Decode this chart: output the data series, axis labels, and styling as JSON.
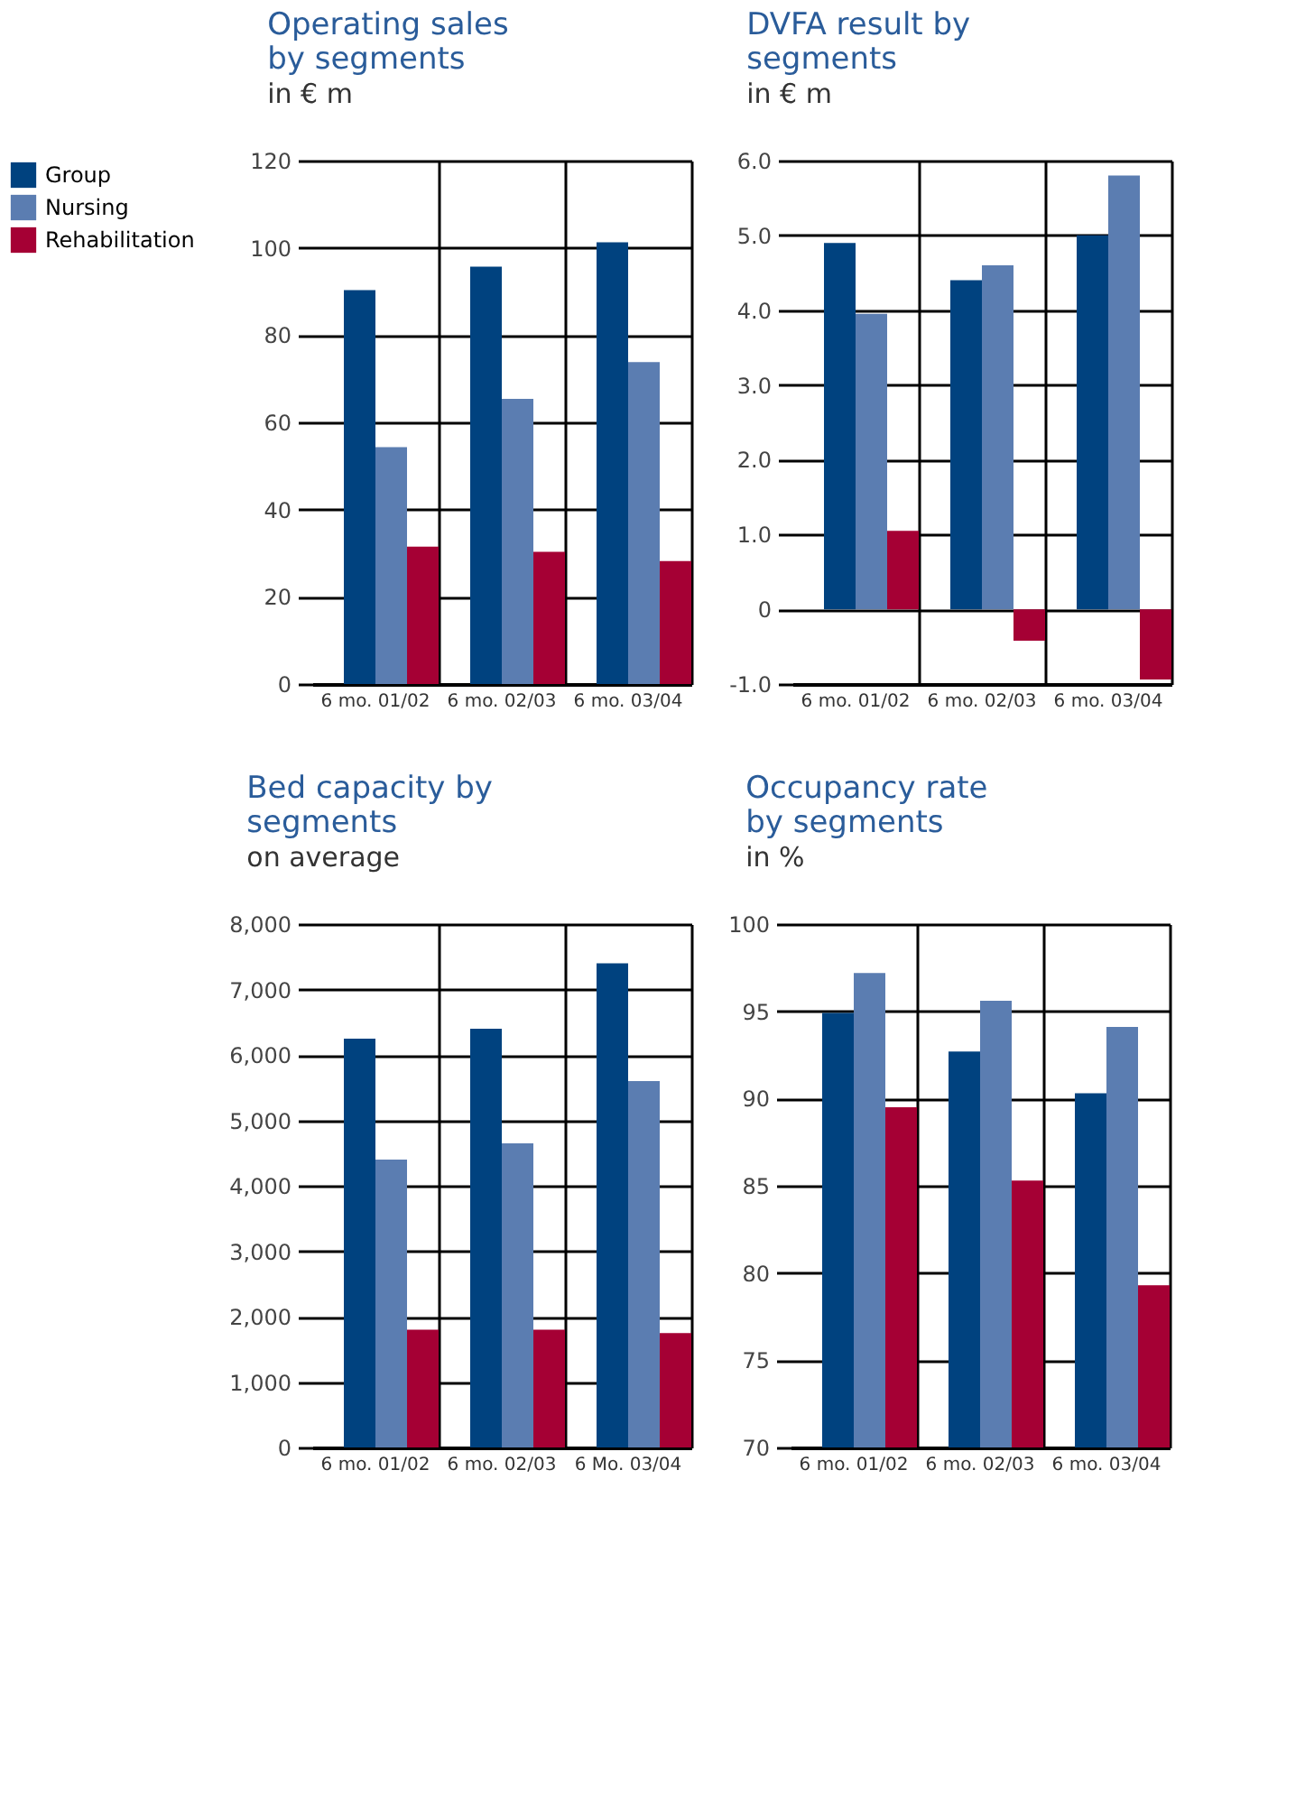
{
  "chart_data": [
    {
      "type": "bar",
      "title": "Operating sales by segments",
      "subtitle": "in € m",
      "categories": [
        "6 mo. 01/02",
        "6 mo. 02/03",
        "6 mo. 03/04"
      ],
      "series": [
        {
          "name": "Group",
          "color": "#00427f",
          "values": [
            90.3,
            95.7,
            101.3
          ]
        },
        {
          "name": "Nursing",
          "color": "#5b7db1",
          "values": [
            54.3,
            65.4,
            73.8
          ]
        },
        {
          "name": "Rehabilitation",
          "color": "#a50034",
          "values": [
            31.5,
            30.3,
            28.2
          ]
        }
      ],
      "ylim": [
        0,
        120
      ],
      "yticks": [
        0,
        20,
        40,
        60,
        80,
        100,
        120
      ],
      "grid": true,
      "legend": "left"
    },
    {
      "type": "bar",
      "title": "DVFA result by segments",
      "subtitle": "in € m",
      "categories": [
        "6 mo. 01/02",
        "6 mo. 02/03",
        "6 mo. 03/04"
      ],
      "series": [
        {
          "name": "Group",
          "color": "#00427f",
          "values": [
            4.9,
            4.4,
            5.0
          ]
        },
        {
          "name": "Nursing",
          "color": "#5b7db1",
          "values": [
            3.95,
            4.6,
            5.8
          ]
        },
        {
          "name": "Rehabilitation",
          "color": "#a50034",
          "values": [
            1.05,
            -0.42,
            -0.94
          ]
        }
      ],
      "ylim": [
        -1,
        6
      ],
      "yticks": [
        {
          "value": -1,
          "label": "-1.0"
        },
        0,
        {
          "value": 1,
          "label": "1.0"
        },
        {
          "value": 2,
          "label": "2.0"
        },
        {
          "value": 3,
          "label": "3.0"
        },
        {
          "value": 4,
          "label": "4.0"
        },
        {
          "value": 5,
          "label": "5.0"
        },
        {
          "value": 6,
          "label": "6.0"
        }
      ],
      "grid": true,
      "legend": "left"
    },
    {
      "type": "bar",
      "title": "Bed capacity by segments",
      "subtitle": "on average",
      "categories": [
        "6 mo. 01/02",
        "6 mo. 02/03",
        "6 Mo. 03/04"
      ],
      "series": [
        {
          "name": "Group",
          "color": "#00427f",
          "values": [
            6250,
            6400,
            7400
          ]
        },
        {
          "name": "Nursing",
          "color": "#5b7db1",
          "values": [
            4400,
            4650,
            5600
          ]
        },
        {
          "name": "Rehabilitation",
          "color": "#a50034",
          "values": [
            1800,
            1800,
            1750
          ]
        }
      ],
      "ylim": [
        0,
        8000
      ],
      "yticks": [
        0,
        {
          "value": 1000,
          "label": "1,000"
        },
        {
          "value": 2000,
          "label": "2,000"
        },
        {
          "value": 3000,
          "label": "3,000"
        },
        {
          "value": 4000,
          "label": "4,000"
        },
        {
          "value": 5000,
          "label": "5,000"
        },
        {
          "value": 6000,
          "label": "6,000"
        },
        {
          "value": 7000,
          "label": "7,000"
        },
        {
          "value": 8000,
          "label": "8,000"
        }
      ],
      "grid": true,
      "legend": "left"
    },
    {
      "type": "bar",
      "title": "Occupancy rate by segments",
      "subtitle": "in %",
      "categories": [
        "6 mo. 01/02",
        "6 mo. 02/03",
        "6 mo. 03/04"
      ],
      "series": [
        {
          "name": "Group",
          "color": "#00427f",
          "values": [
            94.9,
            92.7,
            90.3
          ]
        },
        {
          "name": "Nursing",
          "color": "#5b7db1",
          "values": [
            97.2,
            95.6,
            94.1
          ]
        },
        {
          "name": "Rehabilitation",
          "color": "#a50034",
          "values": [
            89.5,
            85.3,
            79.3
          ]
        }
      ],
      "ylim": [
        70,
        100
      ],
      "yticks": [
        70,
        75,
        80,
        85,
        90,
        95,
        100
      ],
      "grid": true,
      "legend": "left"
    }
  ]
}
